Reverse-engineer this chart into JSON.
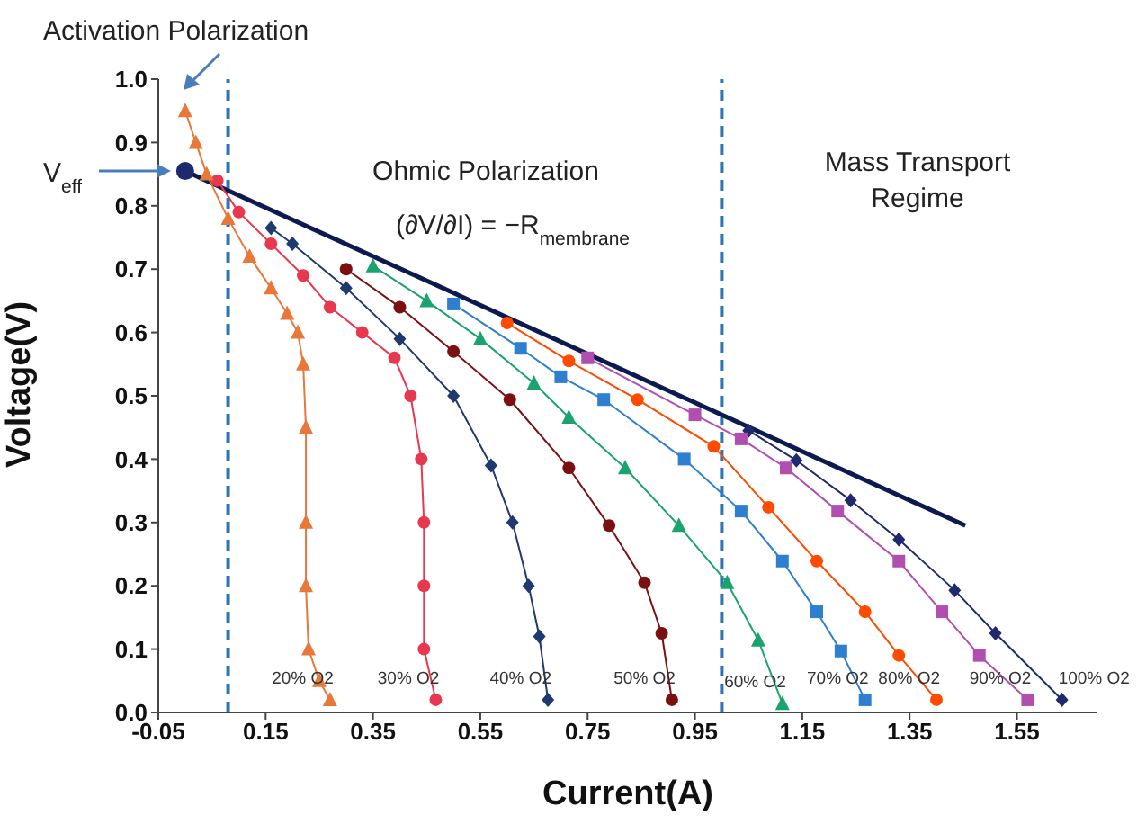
{
  "chart_data": {
    "type": "line",
    "xlabel": "Current(A)",
    "ylabel": "Voltage(V)",
    "xlim": [
      -0.05,
      1.7
    ],
    "xticks": [
      -0.05,
      0.15,
      0.35,
      0.55,
      0.75,
      0.95,
      1.15,
      1.35,
      1.55
    ],
    "ylim": [
      0,
      1.0
    ],
    "yticks": [
      {
        "value": 0,
        "label": "0.0"
      },
      0.1,
      0.2,
      0.3,
      0.4,
      0.5,
      0.6,
      0.7,
      0.8,
      0.9,
      {
        "value": 1,
        "label": "1.0"
      }
    ],
    "grid": false,
    "legend": false,
    "line_style": "solid",
    "series": [
      {
        "name": "20% O2",
        "color": "#e8773a",
        "marker": "triangle",
        "x": [
          0,
          0.02,
          0.04,
          0.08,
          0.12,
          0.16,
          0.19,
          0.21,
          0.22,
          0.225,
          0.225,
          0.225,
          0.23,
          0.25,
          0.27
        ],
        "values": [
          0.95,
          0.9,
          0.85,
          0.78,
          0.72,
          0.67,
          0.63,
          0.6,
          0.55,
          0.45,
          0.3,
          0.2,
          0.1,
          0.05,
          0.02
        ]
      },
      {
        "name": "30% O2",
        "color": "#e8384f",
        "marker": "circle",
        "x": [
          0.06,
          0.1,
          0.16,
          0.22,
          0.27,
          0.33,
          0.39,
          0.42,
          0.44,
          0.445,
          0.445,
          0.445,
          0.467
        ],
        "values": [
          0.84,
          0.79,
          0.74,
          0.69,
          0.64,
          0.6,
          0.56,
          0.5,
          0.4,
          0.3,
          0.2,
          0.1,
          0.02
        ]
      },
      {
        "name": "40% O2",
        "color": "#1f3a6e",
        "marker": "diamond",
        "x": [
          0.16,
          0.2,
          0.3,
          0.4,
          0.5,
          0.57,
          0.61,
          0.64,
          0.66,
          0.676
        ],
        "values": [
          0.765,
          0.74,
          0.67,
          0.59,
          0.5,
          0.39,
          0.3,
          0.2,
          0.12,
          0.02
        ]
      },
      {
        "name": "50% O2",
        "color": "#7a1010",
        "marker": "circle",
        "x": [
          0.3,
          0.4,
          0.5,
          0.605,
          0.715,
          0.79,
          0.856,
          0.888,
          0.907
        ],
        "values": [
          0.7,
          0.64,
          0.57,
          0.494,
          0.386,
          0.295,
          0.205,
          0.125,
          0.02
        ]
      },
      {
        "name": "60% O2",
        "color": "#1aa36f",
        "marker": "triangle",
        "x": [
          0.35,
          0.45,
          0.55,
          0.65,
          0.715,
          0.82,
          0.92,
          1.01,
          1.068,
          1.113
        ],
        "values": [
          0.705,
          0.65,
          0.59,
          0.52,
          0.466,
          0.386,
          0.295,
          0.205,
          0.114,
          0.014
        ]
      },
      {
        "name": "70% O2",
        "color": "#2f7fd0",
        "marker": "square",
        "x": [
          0.5,
          0.625,
          0.7,
          0.78,
          0.93,
          1.036,
          1.113,
          1.177,
          1.222,
          1.267
        ],
        "values": [
          0.645,
          0.575,
          0.53,
          0.494,
          0.4,
          0.318,
          0.239,
          0.159,
          0.097,
          0.02
        ]
      },
      {
        "name": "80% O2",
        "color": "#ff4a00",
        "marker": "circle",
        "x": [
          0.6,
          0.715,
          0.843,
          0.985,
          1.087,
          1.177,
          1.267,
          1.33,
          1.4
        ],
        "values": [
          0.615,
          0.555,
          0.494,
          0.42,
          0.324,
          0.239,
          0.159,
          0.09,
          0.02
        ]
      },
      {
        "name": "90% O2",
        "color": "#b04fb0",
        "marker": "square",
        "x": [
          0.75,
          0.95,
          1.036,
          1.12,
          1.216,
          1.33,
          1.41,
          1.48,
          1.57
        ],
        "values": [
          0.56,
          0.47,
          0.432,
          0.386,
          0.318,
          0.239,
          0.159,
          0.09,
          0.02
        ]
      },
      {
        "name": "100% O2",
        "color": "#1f2a6e",
        "marker": "diamond",
        "x": [
          1.05,
          1.139,
          1.24,
          1.33,
          1.434,
          1.51,
          1.634
        ],
        "values": [
          0.445,
          0.398,
          0.335,
          0.273,
          0.193,
          0.125,
          0.02
        ]
      },
      {
        "type": "line",
        "color": "#0d1a4f",
        "marker": "none",
        "x": [
          0,
          1.454
        ],
        "values": [
          0.855,
          0.295
        ]
      },
      {
        "type": "scatter",
        "color": "#1f2a6e",
        "marker": "circle",
        "x": [
          0
        ],
        "values": [
          0.855
        ]
      }
    ],
    "ref_lines": [
      {
        "axis": "x",
        "value": 0.08,
        "color": "#2e75b6",
        "line_style": "dashed"
      },
      {
        "axis": "x",
        "value": 1.0,
        "color": "#2e75b6",
        "line_style": "dashed"
      }
    ],
    "annotations": [
      "Activation Polarization",
      "V$_{eff}$",
      "Ohmic Polarization",
      "(∂V/∂I) = −R$_{membrane}$",
      "Mass Transport Regime"
    ]
  }
}
